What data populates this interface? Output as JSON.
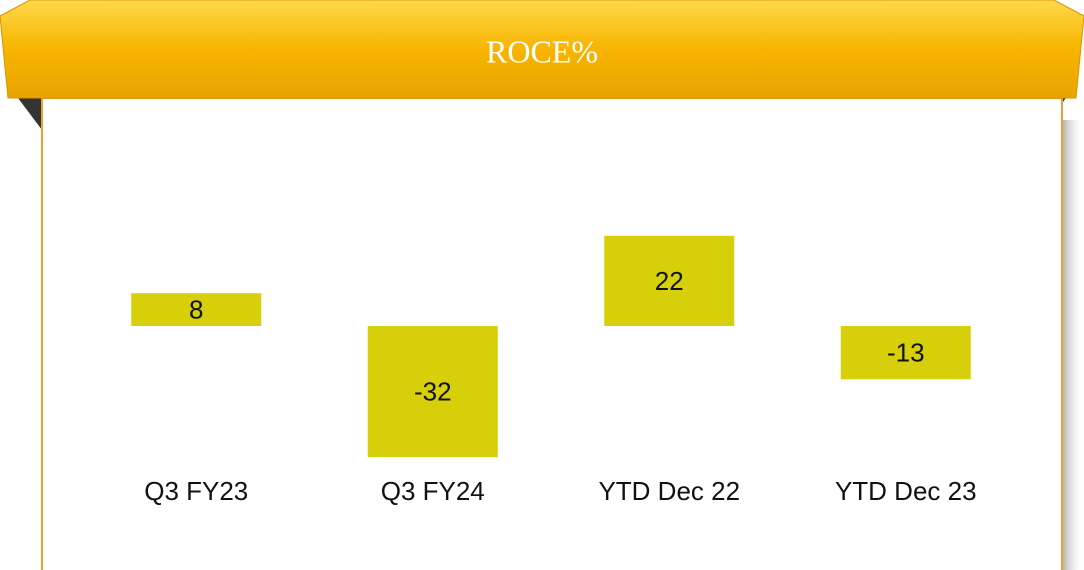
{
  "chart_data": {
    "type": "bar",
    "title": "ROCE%",
    "categories": [
      "Q3 FY23",
      "Q3 FY24",
      "YTD Dec 22",
      "YTD Dec 23"
    ],
    "values": [
      8,
      -32,
      22,
      -13
    ],
    "color": "#d6cf0a",
    "ylim": [
      -40,
      30
    ]
  }
}
